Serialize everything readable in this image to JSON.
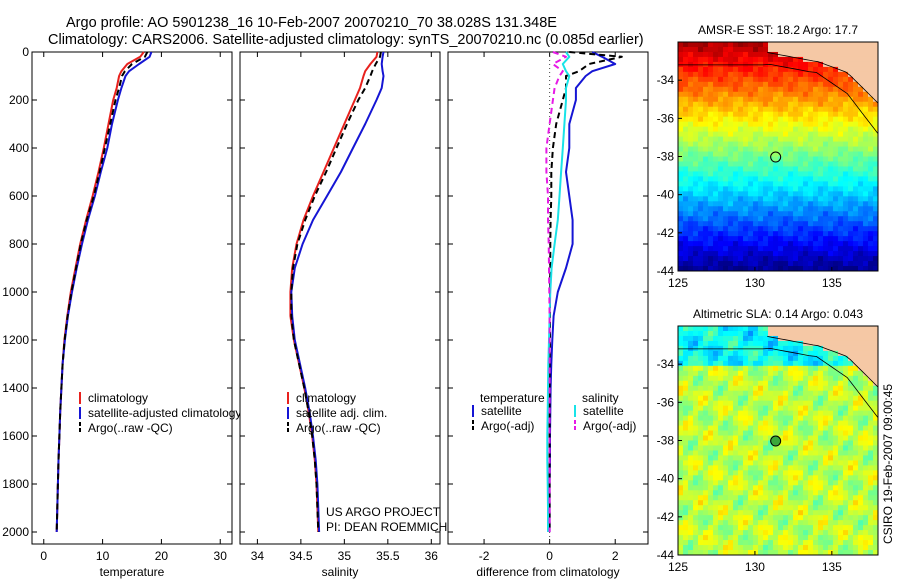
{
  "header": {
    "line1": "Argo profile: AO 5901238_16 10-Feb-2007 20070210_70 38.028S 131.348E",
    "line2": "Climatology: CARS2006. Satellite-adjusted climatology: synTS_20070210.nc (0.085d earlier)"
  },
  "colors": {
    "red": "#e8211d",
    "blue": "#1515d4",
    "black": "#000000",
    "cyan": "#19e3e8",
    "magenta": "#e619e6"
  },
  "chart_data": [
    {
      "type": "line",
      "id": "temperature",
      "xlabel": "temperature",
      "ylabel": "",
      "xlim": [
        -2,
        32
      ],
      "ylim": [
        2050,
        0
      ],
      "xticks": [
        0,
        10,
        20,
        30
      ],
      "yticks": [
        0,
        200,
        400,
        600,
        800,
        1000,
        1200,
        1400,
        1600,
        1800,
        2000
      ],
      "depth": [
        0,
        20,
        50,
        80,
        100,
        150,
        200,
        300,
        400,
        500,
        600,
        700,
        800,
        900,
        1000,
        1100,
        1200,
        1300,
        1400,
        1500,
        1600,
        1700,
        1800,
        1900,
        2000
      ],
      "series": [
        {
          "name": "climatology",
          "color": "red",
          "dash": "",
          "values": [
            17.0,
            16.4,
            14.2,
            13.2,
            12.8,
            12.4,
            11.8,
            11.0,
            10.2,
            9.3,
            8.3,
            7.2,
            6.2,
            5.4,
            4.6,
            4.0,
            3.5,
            3.2,
            3.0,
            2.8,
            2.65,
            2.5,
            2.4,
            2.3,
            2.2
          ]
        },
        {
          "name": "satellite-adjusted climatology",
          "color": "blue",
          "dash": "",
          "values": [
            18.3,
            18.0,
            16.2,
            14.5,
            13.9,
            13.2,
            12.6,
            11.6,
            10.8,
            9.7,
            8.7,
            7.5,
            6.5,
            5.6,
            4.8,
            4.1,
            3.6,
            3.2,
            3.0,
            2.8,
            2.65,
            2.5,
            2.4,
            2.3,
            2.2
          ]
        },
        {
          "name": "Argo(..raw -QC)",
          "color": "black",
          "dash": "6,4",
          "values": [
            17.6,
            17.2,
            15.0,
            13.8,
            13.3,
            12.8,
            12.2,
            11.3,
            10.4,
            9.5,
            8.5,
            7.3,
            6.3,
            5.5,
            4.7,
            4.05,
            3.55,
            3.2,
            3.0,
            2.8,
            2.65,
            2.5,
            2.4,
            2.3,
            2.2
          ]
        }
      ],
      "legend": [
        "climatology",
        "satellite-adjusted climatology",
        "Argo(..raw -QC)"
      ]
    },
    {
      "type": "line",
      "id": "salinity",
      "xlabel": "salinity",
      "ylabel": "",
      "xlim": [
        33.8,
        36.1
      ],
      "ylim": [
        2050,
        0
      ],
      "xticks": [
        34,
        34.5,
        35,
        35.5,
        36
      ],
      "yticks": [
        0,
        200,
        400,
        600,
        800,
        1000,
        1200,
        1400,
        1600,
        1800,
        2000
      ],
      "depth": [
        0,
        20,
        50,
        80,
        100,
        150,
        200,
        300,
        400,
        500,
        600,
        700,
        800,
        900,
        1000,
        1100,
        1200,
        1300,
        1400,
        1500,
        1600,
        1700,
        1800,
        1900,
        2000
      ],
      "series": [
        {
          "name": "climatology",
          "color": "red",
          "dash": "",
          "values": [
            35.38,
            35.37,
            35.3,
            35.24,
            35.22,
            35.18,
            35.12,
            35.0,
            34.88,
            34.76,
            34.64,
            34.53,
            34.45,
            34.4,
            34.38,
            34.38,
            34.42,
            34.48,
            34.54,
            34.59,
            34.63,
            34.66,
            34.68,
            34.69,
            34.7
          ]
        },
        {
          "name": "satellite adj. clim.",
          "color": "blue",
          "dash": "",
          "values": [
            35.45,
            35.44,
            35.43,
            35.44,
            35.45,
            35.43,
            35.37,
            35.24,
            35.1,
            34.96,
            34.8,
            34.64,
            34.52,
            34.43,
            34.39,
            34.4,
            34.43,
            34.49,
            34.55,
            34.6,
            34.64,
            34.67,
            34.69,
            34.7,
            34.71
          ]
        },
        {
          "name": "Argo(..raw -QC)",
          "color": "black",
          "dash": "6,4",
          "values": [
            35.42,
            35.41,
            35.36,
            35.32,
            35.3,
            35.24,
            35.16,
            35.03,
            34.91,
            34.79,
            34.66,
            34.55,
            34.46,
            34.41,
            34.39,
            34.39,
            34.42,
            34.48,
            34.54,
            34.59,
            34.63,
            34.66,
            34.68,
            34.69,
            34.7
          ]
        }
      ],
      "legend": [
        "climatology",
        "satellite adj. clim.",
        "Argo(..raw -QC)"
      ],
      "credit": [
        "US ARGO PROJECT",
        "PI: DEAN ROEMMICH"
      ]
    },
    {
      "type": "line",
      "id": "difference",
      "xlabel": "difference from climatology",
      "ylabel": "",
      "xlim": [
        -3.1,
        3.0
      ],
      "ylim": [
        2050,
        0
      ],
      "xticks": [
        -2,
        0,
        2
      ],
      "yticks": [
        0,
        200,
        400,
        600,
        800,
        1000,
        1200,
        1400,
        1600,
        1800,
        2000
      ],
      "depth": [
        0,
        20,
        50,
        80,
        100,
        150,
        200,
        300,
        400,
        500,
        600,
        700,
        800,
        900,
        1000,
        1100,
        1200,
        1300,
        1400,
        1500,
        1600,
        1700,
        1800,
        1900,
        2000
      ],
      "series": [
        {
          "name": "temperature satellite",
          "color": "blue",
          "dash": "",
          "values": [
            1.3,
            1.6,
            2.0,
            1.3,
            1.1,
            0.8,
            0.8,
            0.6,
            0.6,
            0.5,
            0.6,
            0.7,
            0.7,
            0.5,
            0.25,
            0.12,
            0.08,
            0.05,
            0.03,
            0.02,
            0.01,
            0.01,
            0.0,
            0.0,
            0.0
          ]
        },
        {
          "name": "temperature Argo(-adj)",
          "color": "black",
          "dash": "6,4",
          "values": [
            0.6,
            2.2,
            1.2,
            0.9,
            0.5,
            0.5,
            0.4,
            0.2,
            0.1,
            0.05,
            0.05,
            0.03,
            0.02,
            0.02,
            0.01,
            0.01,
            0.01,
            0.0,
            0.0,
            0.0,
            0.0,
            0.0,
            0.0,
            0.0,
            0.0
          ]
        },
        {
          "name": "salinity satellite",
          "color": "cyan",
          "dash": "",
          "values": [
            0.5,
            0.6,
            0.4,
            0.5,
            0.6,
            0.5,
            0.5,
            0.45,
            0.4,
            0.35,
            0.3,
            0.25,
            0.15,
            0.06,
            0.02,
            0.0,
            -0.02,
            -0.04,
            -0.05,
            -0.06,
            -0.07,
            -0.07,
            -0.06,
            -0.05,
            -0.05
          ]
        },
        {
          "name": "salinity Argo(-adj)",
          "color": "magenta",
          "dash": "6,4",
          "values": [
            0.1,
            0.5,
            0.1,
            0.4,
            0.3,
            0.15,
            0.1,
            0.0,
            -0.1,
            -0.1,
            -0.05,
            -0.05,
            -0.03,
            -0.02,
            -0.01,
            0.0,
            0.0,
            0.0,
            0.0,
            0.0,
            0.0,
            0.0,
            0.0,
            0.0,
            0.0
          ]
        }
      ],
      "legend_head": [
        "temperature",
        "salinity"
      ],
      "legend": [
        "satellite",
        "Argo(-adj)",
        "satellite",
        "Argo(-adj)"
      ]
    },
    {
      "type": "heatmap",
      "id": "sst-map",
      "title": "AMSR-E SST: 18.2 Argo: 17.7",
      "xlim": [
        125,
        138
      ],
      "ylim": [
        -44,
        -32
      ],
      "xticks": [
        125,
        130,
        135
      ],
      "yticks": [
        -34,
        -36,
        -38,
        -40,
        -42,
        -44
      ],
      "station": {
        "lon": 131.348,
        "lat": -38.028
      }
    },
    {
      "type": "heatmap",
      "id": "sla-map",
      "title": "Altimetric SLA: 0.14 Argo: 0.043",
      "xlim": [
        125,
        138
      ],
      "ylim": [
        -44,
        -32
      ],
      "xticks": [
        125,
        130,
        135
      ],
      "yticks": [
        -34,
        -36,
        -38,
        -40,
        -42,
        -44
      ],
      "station": {
        "lon": 131.348,
        "lat": -38.028
      }
    }
  ],
  "side_text": "CSIRO 19-Feb-2007 09:00:45"
}
